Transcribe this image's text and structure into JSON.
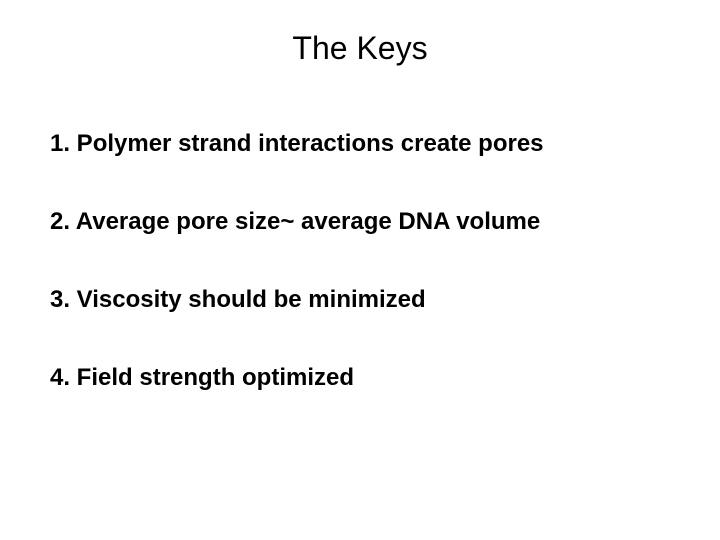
{
  "slide": {
    "title": "The Keys",
    "title_fontsize": 32,
    "title_fontweight": "normal",
    "items": [
      "1. Polymer strand interactions create pores",
      "2. Average pore size~ average DNA volume",
      "3.  Viscosity should be minimized",
      "4.  Field strength optimized"
    ],
    "item_fontsize": 24,
    "item_fontweight": "bold",
    "item_spacing": 50,
    "background_color": "#ffffff",
    "text_color": "#000000",
    "font_family": "Arial"
  }
}
